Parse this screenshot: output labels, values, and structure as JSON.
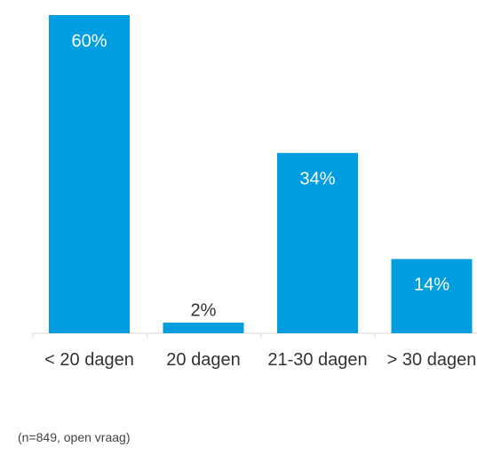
{
  "chart_data": {
    "type": "bar",
    "categories": [
      "< 20 dagen",
      "20 dagen",
      "21-30 dagen",
      "> 30 dagen"
    ],
    "values": [
      60,
      2,
      34,
      14
    ],
    "value_labels": [
      "60%",
      "2%",
      "34%",
      "14%"
    ],
    "color": "#009ee0",
    "footnote": "(n=849, open vraag)"
  }
}
